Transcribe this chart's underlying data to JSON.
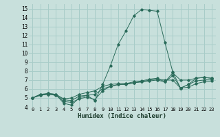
{
  "xlabel": "Humidex (Indice chaleur)",
  "ylabel": "",
  "bg_color": "#c8e0dc",
  "grid_color": "#a8ccc8",
  "line_color": "#2a6b5a",
  "xlim": [
    -0.5,
    23.5
  ],
  "ylim": [
    4,
    15.5
  ],
  "xticks": [
    0,
    1,
    2,
    3,
    4,
    5,
    6,
    7,
    8,
    9,
    10,
    11,
    12,
    13,
    14,
    15,
    16,
    17,
    18,
    19,
    20,
    21,
    22,
    23
  ],
  "yticks": [
    4,
    5,
    6,
    7,
    8,
    9,
    10,
    11,
    12,
    13,
    14,
    15
  ],
  "series": [
    [
      5.0,
      5.4,
      5.5,
      5.4,
      4.4,
      4.2,
      5.0,
      5.3,
      4.7,
      6.5,
      8.6,
      11.0,
      12.5,
      14.2,
      14.9,
      14.8,
      14.7,
      11.2,
      7.9,
      6.1,
      6.5,
      7.2,
      7.3,
      7.2
    ],
    [
      5.0,
      5.4,
      5.4,
      5.3,
      4.6,
      4.5,
      4.9,
      5.1,
      4.8,
      5.8,
      6.3,
      6.5,
      6.5,
      6.7,
      6.8,
      7.0,
      7.1,
      7.0,
      7.0,
      6.1,
      6.5,
      6.9,
      7.0,
      7.1
    ],
    [
      5.0,
      5.3,
      5.4,
      5.3,
      4.8,
      4.7,
      5.2,
      5.3,
      5.4,
      6.0,
      6.3,
      6.5,
      6.6,
      6.7,
      6.8,
      6.9,
      7.0,
      6.8,
      7.8,
      7.0,
      7.0,
      7.2,
      7.3,
      7.2
    ],
    [
      5.0,
      5.3,
      5.5,
      5.4,
      4.9,
      5.0,
      5.4,
      5.6,
      5.8,
      6.3,
      6.5,
      6.6,
      6.6,
      6.8,
      6.9,
      7.1,
      7.2,
      6.8,
      7.5,
      6.1,
      6.2,
      6.6,
      6.8,
      6.9
    ]
  ]
}
